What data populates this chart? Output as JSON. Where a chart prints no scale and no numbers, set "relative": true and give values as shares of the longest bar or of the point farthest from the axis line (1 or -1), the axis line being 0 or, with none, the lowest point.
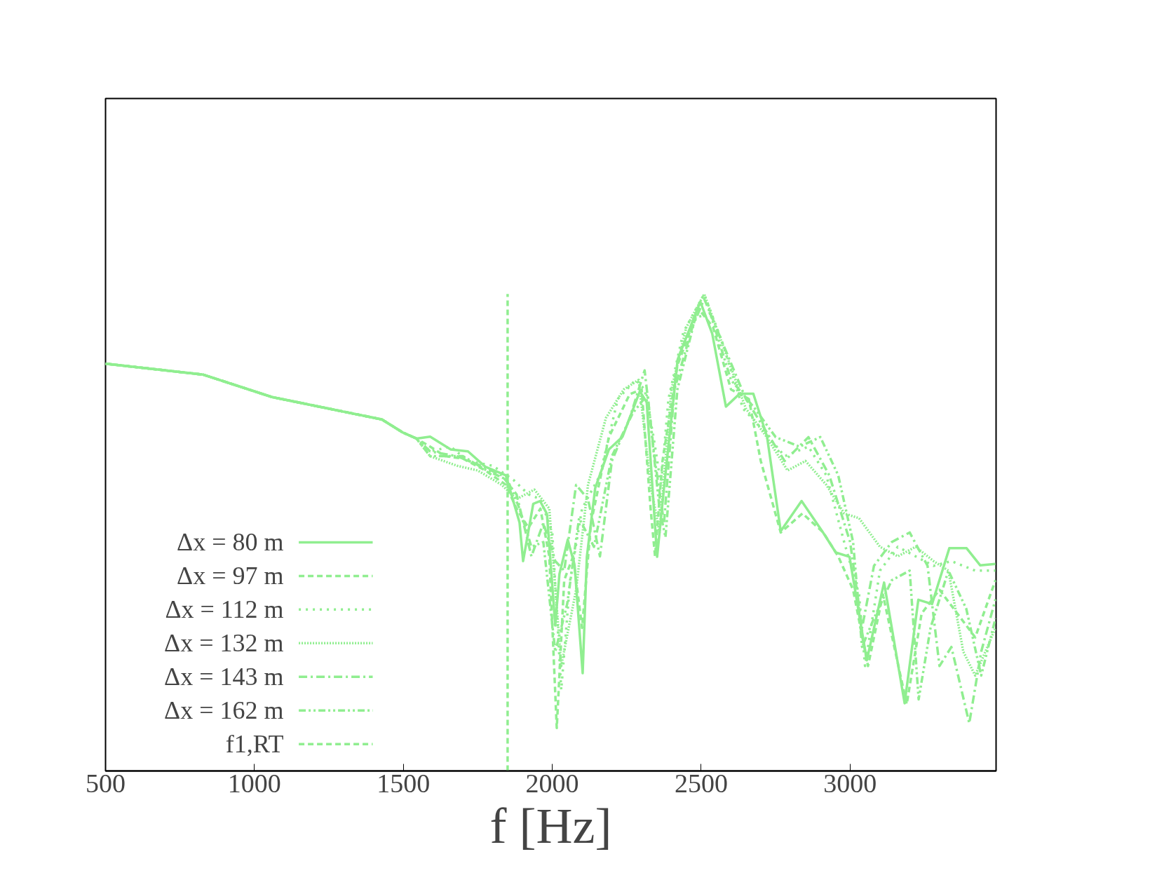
{
  "chart_data": {
    "type": "line",
    "relative": true,
    "xlabel": "f [Hz]",
    "xlim": [
      500,
      3490
    ],
    "xticks": [
      500,
      1000,
      1500,
      2000,
      2500,
      3000
    ],
    "legend": "bottom left",
    "grid": false,
    "series": [
      {
        "name": "Δx = 80 m",
        "color": "#90ee90",
        "line_style": "solid",
        "x": [
          500,
          828,
          1059,
          1428,
          1497,
          1544,
          1590,
          1659,
          1717,
          1775,
          1844,
          1890,
          1902,
          1936,
          1959,
          1982,
          2010,
          2024,
          2052,
          2075,
          2102,
          2116,
          2144,
          2190,
          2236,
          2294,
          2317,
          2352,
          2375,
          2421,
          2497,
          2537,
          2583,
          2629,
          2675,
          2721,
          2767,
          2837,
          2906,
          2952,
          2998,
          3056,
          3114,
          3183,
          3229,
          3275,
          3333,
          3391,
          3437,
          3488
        ],
        "values": [
          0.854,
          0.831,
          0.784,
          0.737,
          0.71,
          0.697,
          0.701,
          0.674,
          0.67,
          0.638,
          0.62,
          0.521,
          0.44,
          0.56,
          0.566,
          0.539,
          0.305,
          0.413,
          0.485,
          0.431,
          0.205,
          0.449,
          0.593,
          0.674,
          0.701,
          0.796,
          0.773,
          0.449,
          0.593,
          0.863,
          0.984,
          0.917,
          0.764,
          0.791,
          0.791,
          0.701,
          0.503,
          0.566,
          0.503,
          0.458,
          0.449,
          0.232,
          0.395,
          0.142,
          0.359,
          0.35,
          0.467,
          0.467,
          0.431,
          0.434
        ]
      },
      {
        "name": "Δx = 97 m",
        "color": "#90ee90",
        "line_style": "dashed",
        "x": [
          500,
          828,
          1059,
          1428,
          1497,
          1544,
          1590,
          1640,
          1700,
          1775,
          1844,
          1880,
          1920,
          1960,
          1990,
          2015,
          2040,
          2070,
          2100,
          2130,
          2190,
          2260,
          2300,
          2330,
          2345,
          2370,
          2420,
          2490,
          2540,
          2600,
          2660,
          2700,
          2767,
          2840,
          2910,
          2960,
          3010,
          3060,
          3110,
          3190,
          3240,
          3300,
          3360,
          3420,
          3488
        ],
        "values": [
          0.854,
          0.831,
          0.784,
          0.737,
          0.71,
          0.697,
          0.68,
          0.66,
          0.655,
          0.63,
          0.6,
          0.55,
          0.51,
          0.55,
          0.45,
          0.09,
          0.4,
          0.45,
          0.3,
          0.52,
          0.7,
          0.79,
          0.8,
          0.55,
          0.45,
          0.65,
          0.85,
          0.97,
          0.93,
          0.8,
          0.78,
          0.65,
          0.5,
          0.54,
          0.5,
          0.45,
          0.38,
          0.22,
          0.37,
          0.14,
          0.33,
          0.38,
          0.33,
          0.28,
          0.4
        ]
      },
      {
        "name": "Δx = 112 m",
        "color": "#90ee90",
        "line_style": "dotted",
        "x": [
          500,
          828,
          1059,
          1428,
          1497,
          1544,
          1590,
          1659,
          1717,
          1800,
          1870,
          1920,
          1960,
          2000,
          2030,
          2060,
          2100,
          2160,
          2220,
          2280,
          2310,
          2340,
          2365,
          2390,
          2440,
          2510,
          2570,
          2640,
          2700,
          2780,
          2860,
          2920,
          2980,
          3030,
          3050,
          3100,
          3160,
          3220,
          3280,
          3340,
          3420,
          3488
        ],
        "values": [
          0.854,
          0.831,
          0.784,
          0.737,
          0.71,
          0.697,
          0.67,
          0.68,
          0.65,
          0.64,
          0.61,
          0.58,
          0.57,
          0.5,
          0.17,
          0.4,
          0.55,
          0.62,
          0.78,
          0.82,
          0.8,
          0.7,
          0.6,
          0.78,
          0.92,
          1.0,
          0.9,
          0.76,
          0.72,
          0.66,
          0.68,
          0.62,
          0.48,
          0.37,
          0.22,
          0.42,
          0.47,
          0.45,
          0.43,
          0.44,
          0.42,
          0.42
        ]
      },
      {
        "name": "Δx = 132 m",
        "color": "#90ee90",
        "line_style": "densely dotted",
        "x": [
          500,
          828,
          1059,
          1428,
          1497,
          1544,
          1590,
          1680,
          1750,
          1830,
          1880,
          1940,
          1990,
          2030,
          2080,
          2120,
          2180,
          2240,
          2290,
          2330,
          2360,
          2400,
          2450,
          2510,
          2580,
          2650,
          2720,
          2790,
          2850,
          2920,
          2980,
          3030,
          3100,
          3160,
          3220,
          3280,
          3330,
          3380,
          3420,
          3488
        ],
        "values": [
          0.854,
          0.831,
          0.784,
          0.737,
          0.71,
          0.697,
          0.66,
          0.64,
          0.63,
          0.6,
          0.57,
          0.59,
          0.55,
          0.22,
          0.38,
          0.6,
          0.74,
          0.8,
          0.82,
          0.6,
          0.5,
          0.8,
          0.93,
          1.0,
          0.88,
          0.76,
          0.7,
          0.63,
          0.65,
          0.6,
          0.54,
          0.53,
          0.47,
          0.45,
          0.47,
          0.44,
          0.42,
          0.25,
          0.2,
          0.3
        ]
      },
      {
        "name": "Δx = 143 m",
        "color": "#90ee90",
        "line_style": "dashdot",
        "x": [
          500,
          828,
          1059,
          1428,
          1497,
          1544,
          1590,
          1680,
          1760,
          1830,
          1880,
          1930,
          1970,
          2010,
          2040,
          2080,
          2120,
          2160,
          2200,
          2260,
          2310,
          2345,
          2375,
          2410,
          2470,
          2510,
          2570,
          2650,
          2710,
          2780,
          2860,
          2930,
          3000,
          3040,
          3080,
          3140,
          3200,
          3260,
          3300,
          3340,
          3400,
          3440,
          3488
        ],
        "values": [
          0.854,
          0.831,
          0.784,
          0.737,
          0.71,
          0.697,
          0.67,
          0.66,
          0.64,
          0.62,
          0.58,
          0.45,
          0.52,
          0.44,
          0.42,
          0.6,
          0.57,
          0.45,
          0.65,
          0.74,
          0.84,
          0.65,
          0.52,
          0.8,
          0.93,
          0.99,
          0.9,
          0.78,
          0.72,
          0.65,
          0.7,
          0.62,
          0.48,
          0.3,
          0.43,
          0.48,
          0.5,
          0.43,
          0.22,
          0.26,
          0.1,
          0.25,
          0.36
        ]
      },
      {
        "name": "Δx = 162 m",
        "color": "#90ee90",
        "line_style": "dashdotdot",
        "x": [
          500,
          828,
          1059,
          1428,
          1497,
          1544,
          1590,
          1700,
          1780,
          1850,
          1890,
          1930,
          1970,
          2010,
          2050,
          2090,
          2140,
          2200,
          2270,
          2320,
          2360,
          2380,
          2420,
          2480,
          2530,
          2600,
          2680,
          2750,
          2830,
          2900,
          2960,
          3010,
          3040,
          3080,
          3140,
          3200,
          3230,
          3270,
          3330,
          3390,
          3440,
          3488
        ],
        "values": [
          0.854,
          0.831,
          0.784,
          0.737,
          0.71,
          0.697,
          0.66,
          0.66,
          0.63,
          0.61,
          0.55,
          0.47,
          0.48,
          0.25,
          0.35,
          0.53,
          0.47,
          0.66,
          0.75,
          0.79,
          0.55,
          0.49,
          0.8,
          0.95,
          0.96,
          0.82,
          0.76,
          0.7,
          0.68,
          0.7,
          0.62,
          0.48,
          0.26,
          0.32,
          0.4,
          0.42,
          0.15,
          0.3,
          0.42,
          0.34,
          0.2,
          0.32
        ]
      },
      {
        "name": "f1,RT",
        "color": "#90ee90",
        "line_style": "dashed",
        "x": [
          1850,
          1850
        ],
        "values": [
          0,
          1
        ]
      }
    ]
  }
}
